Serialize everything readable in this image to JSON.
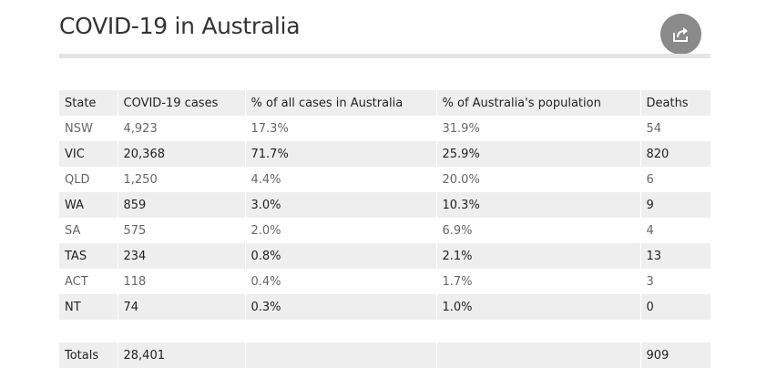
{
  "page": {
    "title": "COVID-19 in Australia",
    "share_icon": "share-icon"
  },
  "colors": {
    "share_button_bg": "#8a8a8a",
    "row_shade": "#eeeeee",
    "title_rule": "#e5e5e5"
  },
  "table": {
    "headers": [
      "State",
      "COVID-19 cases",
      "% of all cases in Australia",
      "% of Australia's population",
      "Deaths"
    ],
    "rows": [
      [
        "NSW",
        "4,923",
        "17.3%",
        "31.9%",
        "54"
      ],
      [
        "VIC",
        "20,368",
        "71.7%",
        "25.9%",
        "820"
      ],
      [
        "QLD",
        "1,250",
        "4.4%",
        "20.0%",
        "6"
      ],
      [
        "WA",
        "859",
        "3.0%",
        "10.3%",
        "9"
      ],
      [
        "SA",
        "575",
        "2.0%",
        "6.9%",
        "4"
      ],
      [
        "TAS",
        "234",
        "0.8%",
        "2.1%",
        "13"
      ],
      [
        "ACT",
        "118",
        "0.4%",
        "1.7%",
        "3"
      ],
      [
        "NT",
        "74",
        "0.3%",
        "1.0%",
        "0"
      ]
    ],
    "totals": [
      "Totals",
      "28,401",
      "",
      "",
      "909"
    ]
  }
}
